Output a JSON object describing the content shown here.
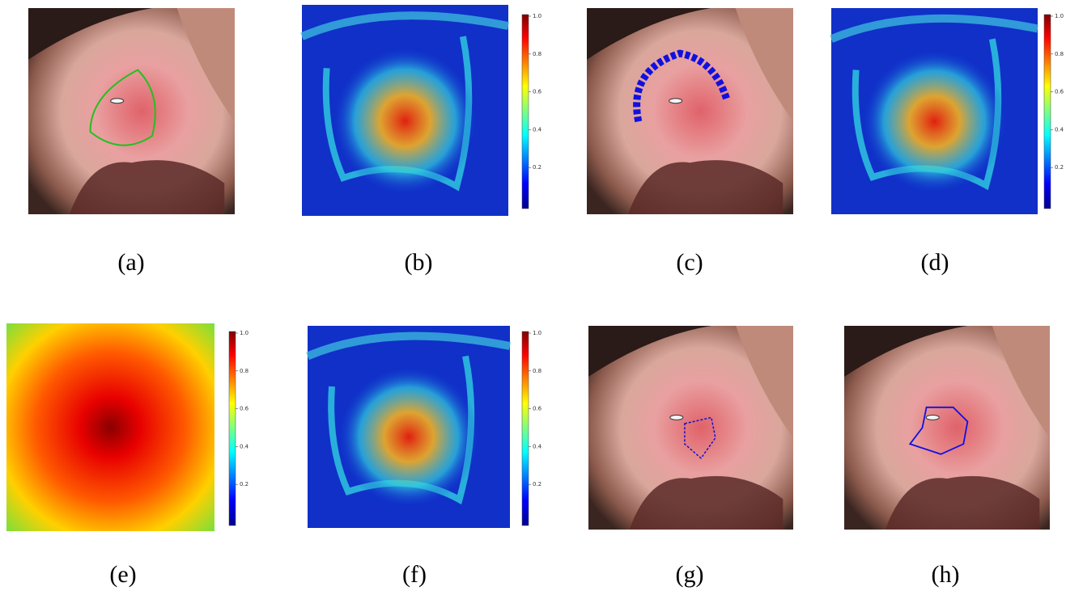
{
  "panels": [
    {
      "label": "(a)"
    },
    {
      "label": "(b)",
      "colorbar": {
        "ticks": [
          "1.0",
          "0.8",
          "0.6",
          "0.4",
          "0.2"
        ]
      }
    },
    {
      "label": "(c)"
    },
    {
      "label": "(d)",
      "colorbar": {
        "ticks": [
          "1.0",
          "0.8",
          "0.6",
          "0.4",
          "0.2"
        ]
      }
    },
    {
      "label": "(e)",
      "colorbar": {
        "ticks": [
          "1.0",
          "0.8",
          "0.6",
          "0.4",
          "0.2"
        ]
      }
    },
    {
      "label": "(f)",
      "colorbar": {
        "ticks": [
          "1.0",
          "0.8",
          "0.6",
          "0.4",
          "0.2"
        ]
      }
    },
    {
      "label": "(g)"
    },
    {
      "label": "(h)"
    }
  ]
}
